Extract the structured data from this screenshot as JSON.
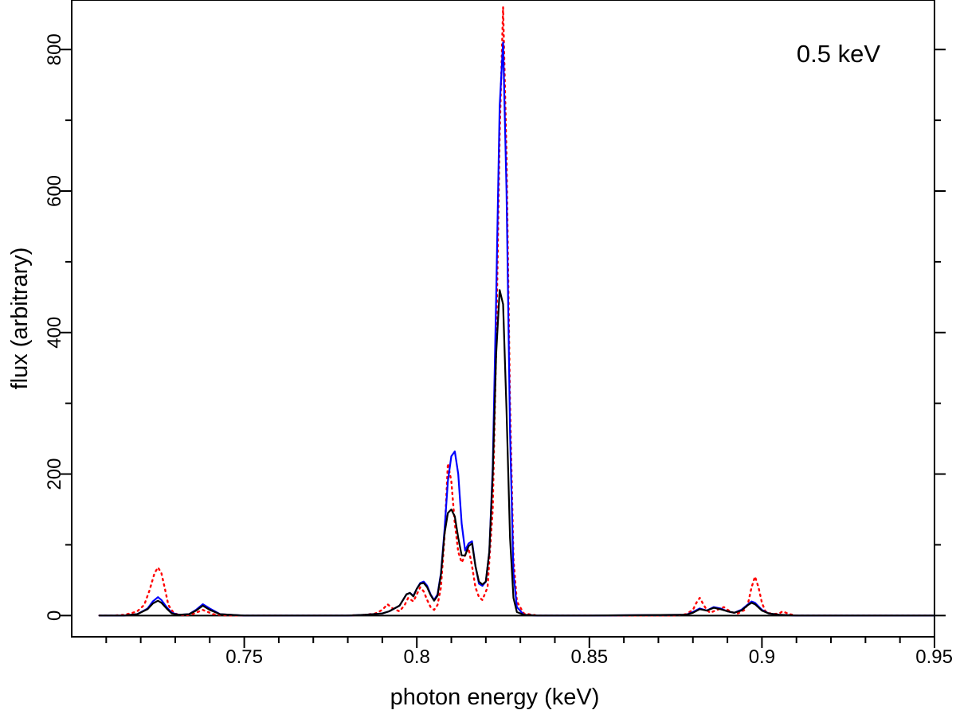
{
  "chart_data": {
    "type": "line",
    "title": "",
    "annotation": "0.5 keV",
    "xlabel": "photon energy (keV)",
    "ylabel": "flux (arbitrary)",
    "xlim": [
      0.7,
      0.95
    ],
    "ylim": [
      -30,
      870
    ],
    "x_ticks": [
      {
        "value": 0.75,
        "label": "0.75"
      },
      {
        "value": 0.8,
        "label": "0.8"
      },
      {
        "value": 0.85,
        "label": "0.85"
      },
      {
        "value": 0.9,
        "label": "0.9"
      },
      {
        "value": 0.95,
        "label": "0.95"
      }
    ],
    "y_ticks": [
      {
        "value": 0,
        "label": "0"
      },
      {
        "value": 200,
        "label": "200"
      },
      {
        "value": 400,
        "label": "400"
      },
      {
        "value": 600,
        "label": "600"
      },
      {
        "value": 800,
        "label": "800"
      }
    ],
    "grid": false,
    "legend": "none",
    "series": [
      {
        "color": "#ff0000",
        "style": "dotted",
        "x": [
          0.708,
          0.712,
          0.715,
          0.717,
          0.719,
          0.721,
          0.7225,
          0.724,
          0.725,
          0.726,
          0.727,
          0.728,
          0.7295,
          0.731,
          0.733,
          0.735,
          0.7365,
          0.738,
          0.7395,
          0.741,
          0.745,
          0.76,
          0.78,
          0.785,
          0.788,
          0.79,
          0.7915,
          0.793,
          0.795,
          0.7965,
          0.7975,
          0.799,
          0.8,
          0.801,
          0.802,
          0.803,
          0.804,
          0.805,
          0.806,
          0.807,
          0.808,
          0.809,
          0.81,
          0.811,
          0.812,
          0.813,
          0.814,
          0.815,
          0.816,
          0.817,
          0.818,
          0.819,
          0.8205,
          0.822,
          0.823,
          0.824,
          0.825,
          0.826,
          0.827,
          0.828,
          0.829,
          0.831,
          0.835,
          0.85,
          0.875,
          0.878,
          0.88,
          0.881,
          0.882,
          0.883,
          0.884,
          0.885,
          0.887,
          0.889,
          0.891,
          0.893,
          0.895,
          0.896,
          0.897,
          0.898,
          0.899,
          0.9,
          0.901,
          0.903,
          0.905,
          0.906,
          0.907,
          0.908,
          0.91,
          0.92,
          0.95
        ],
        "y": [
          0,
          0,
          1,
          3,
          6,
          15,
          35,
          60,
          68,
          60,
          38,
          15,
          4,
          1,
          0,
          2,
          5,
          8,
          5,
          2,
          0,
          0,
          0,
          1,
          3,
          8,
          16,
          10,
          6,
          15,
          25,
          20,
          30,
          40,
          34,
          22,
          12,
          8,
          15,
          40,
          110,
          215,
          190,
          130,
          90,
          75,
          85,
          95,
          70,
          40,
          26,
          22,
          40,
          150,
          380,
          680,
          860,
          650,
          300,
          80,
          20,
          3,
          0,
          0,
          0,
          2,
          8,
          18,
          25,
          16,
          8,
          4,
          8,
          12,
          5,
          3,
          8,
          18,
          40,
          55,
          40,
          18,
          6,
          2,
          3,
          6,
          4,
          2,
          0,
          0,
          0
        ]
      },
      {
        "color": "#0000ff",
        "style": "solid",
        "x": [
          0.708,
          0.715,
          0.719,
          0.722,
          0.7235,
          0.725,
          0.726,
          0.7275,
          0.729,
          0.731,
          0.734,
          0.736,
          0.738,
          0.74,
          0.743,
          0.75,
          0.76,
          0.78,
          0.785,
          0.79,
          0.792,
          0.795,
          0.797,
          0.798,
          0.799,
          0.8,
          0.801,
          0.802,
          0.803,
          0.804,
          0.805,
          0.806,
          0.807,
          0.808,
          0.809,
          0.81,
          0.811,
          0.812,
          0.813,
          0.814,
          0.815,
          0.816,
          0.817,
          0.818,
          0.819,
          0.82,
          0.821,
          0.822,
          0.823,
          0.824,
          0.825,
          0.826,
          0.827,
          0.828,
          0.829,
          0.831,
          0.835,
          0.85,
          0.878,
          0.88,
          0.882,
          0.884,
          0.886,
          0.888,
          0.89,
          0.892,
          0.894,
          0.896,
          0.897,
          0.898,
          0.9,
          0.902,
          0.905,
          0.91,
          0.95
        ],
        "y": [
          0,
          0,
          2,
          10,
          20,
          26,
          22,
          12,
          4,
          1,
          2,
          8,
          16,
          10,
          2,
          0,
          0,
          0,
          1,
          3,
          6,
          14,
          30,
          32,
          28,
          38,
          46,
          48,
          42,
          30,
          22,
          30,
          60,
          120,
          190,
          225,
          232,
          200,
          130,
          92,
          102,
          105,
          70,
          45,
          42,
          48,
          90,
          210,
          450,
          720,
          810,
          600,
          260,
          60,
          12,
          1,
          0,
          0,
          1,
          5,
          10,
          7,
          12,
          10,
          6,
          4,
          8,
          16,
          20,
          18,
          8,
          3,
          1,
          0,
          0
        ]
      },
      {
        "color": "#000000",
        "style": "solid",
        "x": [
          0.708,
          0.715,
          0.719,
          0.722,
          0.7235,
          0.725,
          0.726,
          0.7275,
          0.729,
          0.731,
          0.734,
          0.736,
          0.738,
          0.74,
          0.743,
          0.75,
          0.76,
          0.78,
          0.785,
          0.79,
          0.792,
          0.795,
          0.797,
          0.798,
          0.799,
          0.8,
          0.801,
          0.802,
          0.803,
          0.804,
          0.805,
          0.806,
          0.807,
          0.808,
          0.809,
          0.81,
          0.811,
          0.812,
          0.813,
          0.814,
          0.815,
          0.816,
          0.817,
          0.818,
          0.819,
          0.82,
          0.821,
          0.822,
          0.823,
          0.824,
          0.825,
          0.826,
          0.827,
          0.828,
          0.829,
          0.831,
          0.835,
          0.85,
          0.878,
          0.88,
          0.882,
          0.884,
          0.886,
          0.888,
          0.89,
          0.892,
          0.894,
          0.896,
          0.897,
          0.898,
          0.9,
          0.902,
          0.905,
          0.91,
          0.95
        ],
        "y": [
          0,
          0,
          2,
          9,
          17,
          21,
          18,
          10,
          3,
          1,
          2,
          7,
          14,
          8,
          2,
          0,
          0,
          0,
          1,
          3,
          6,
          14,
          30,
          32,
          27,
          38,
          45,
          46,
          40,
          29,
          21,
          28,
          58,
          115,
          145,
          150,
          140,
          110,
          85,
          85,
          98,
          102,
          70,
          48,
          44,
          48,
          90,
          200,
          370,
          460,
          440,
          290,
          110,
          25,
          5,
          1,
          0,
          0,
          1,
          4,
          9,
          7,
          11,
          9,
          6,
          4,
          7,
          15,
          18,
          16,
          7,
          3,
          1,
          0,
          0
        ]
      }
    ]
  }
}
